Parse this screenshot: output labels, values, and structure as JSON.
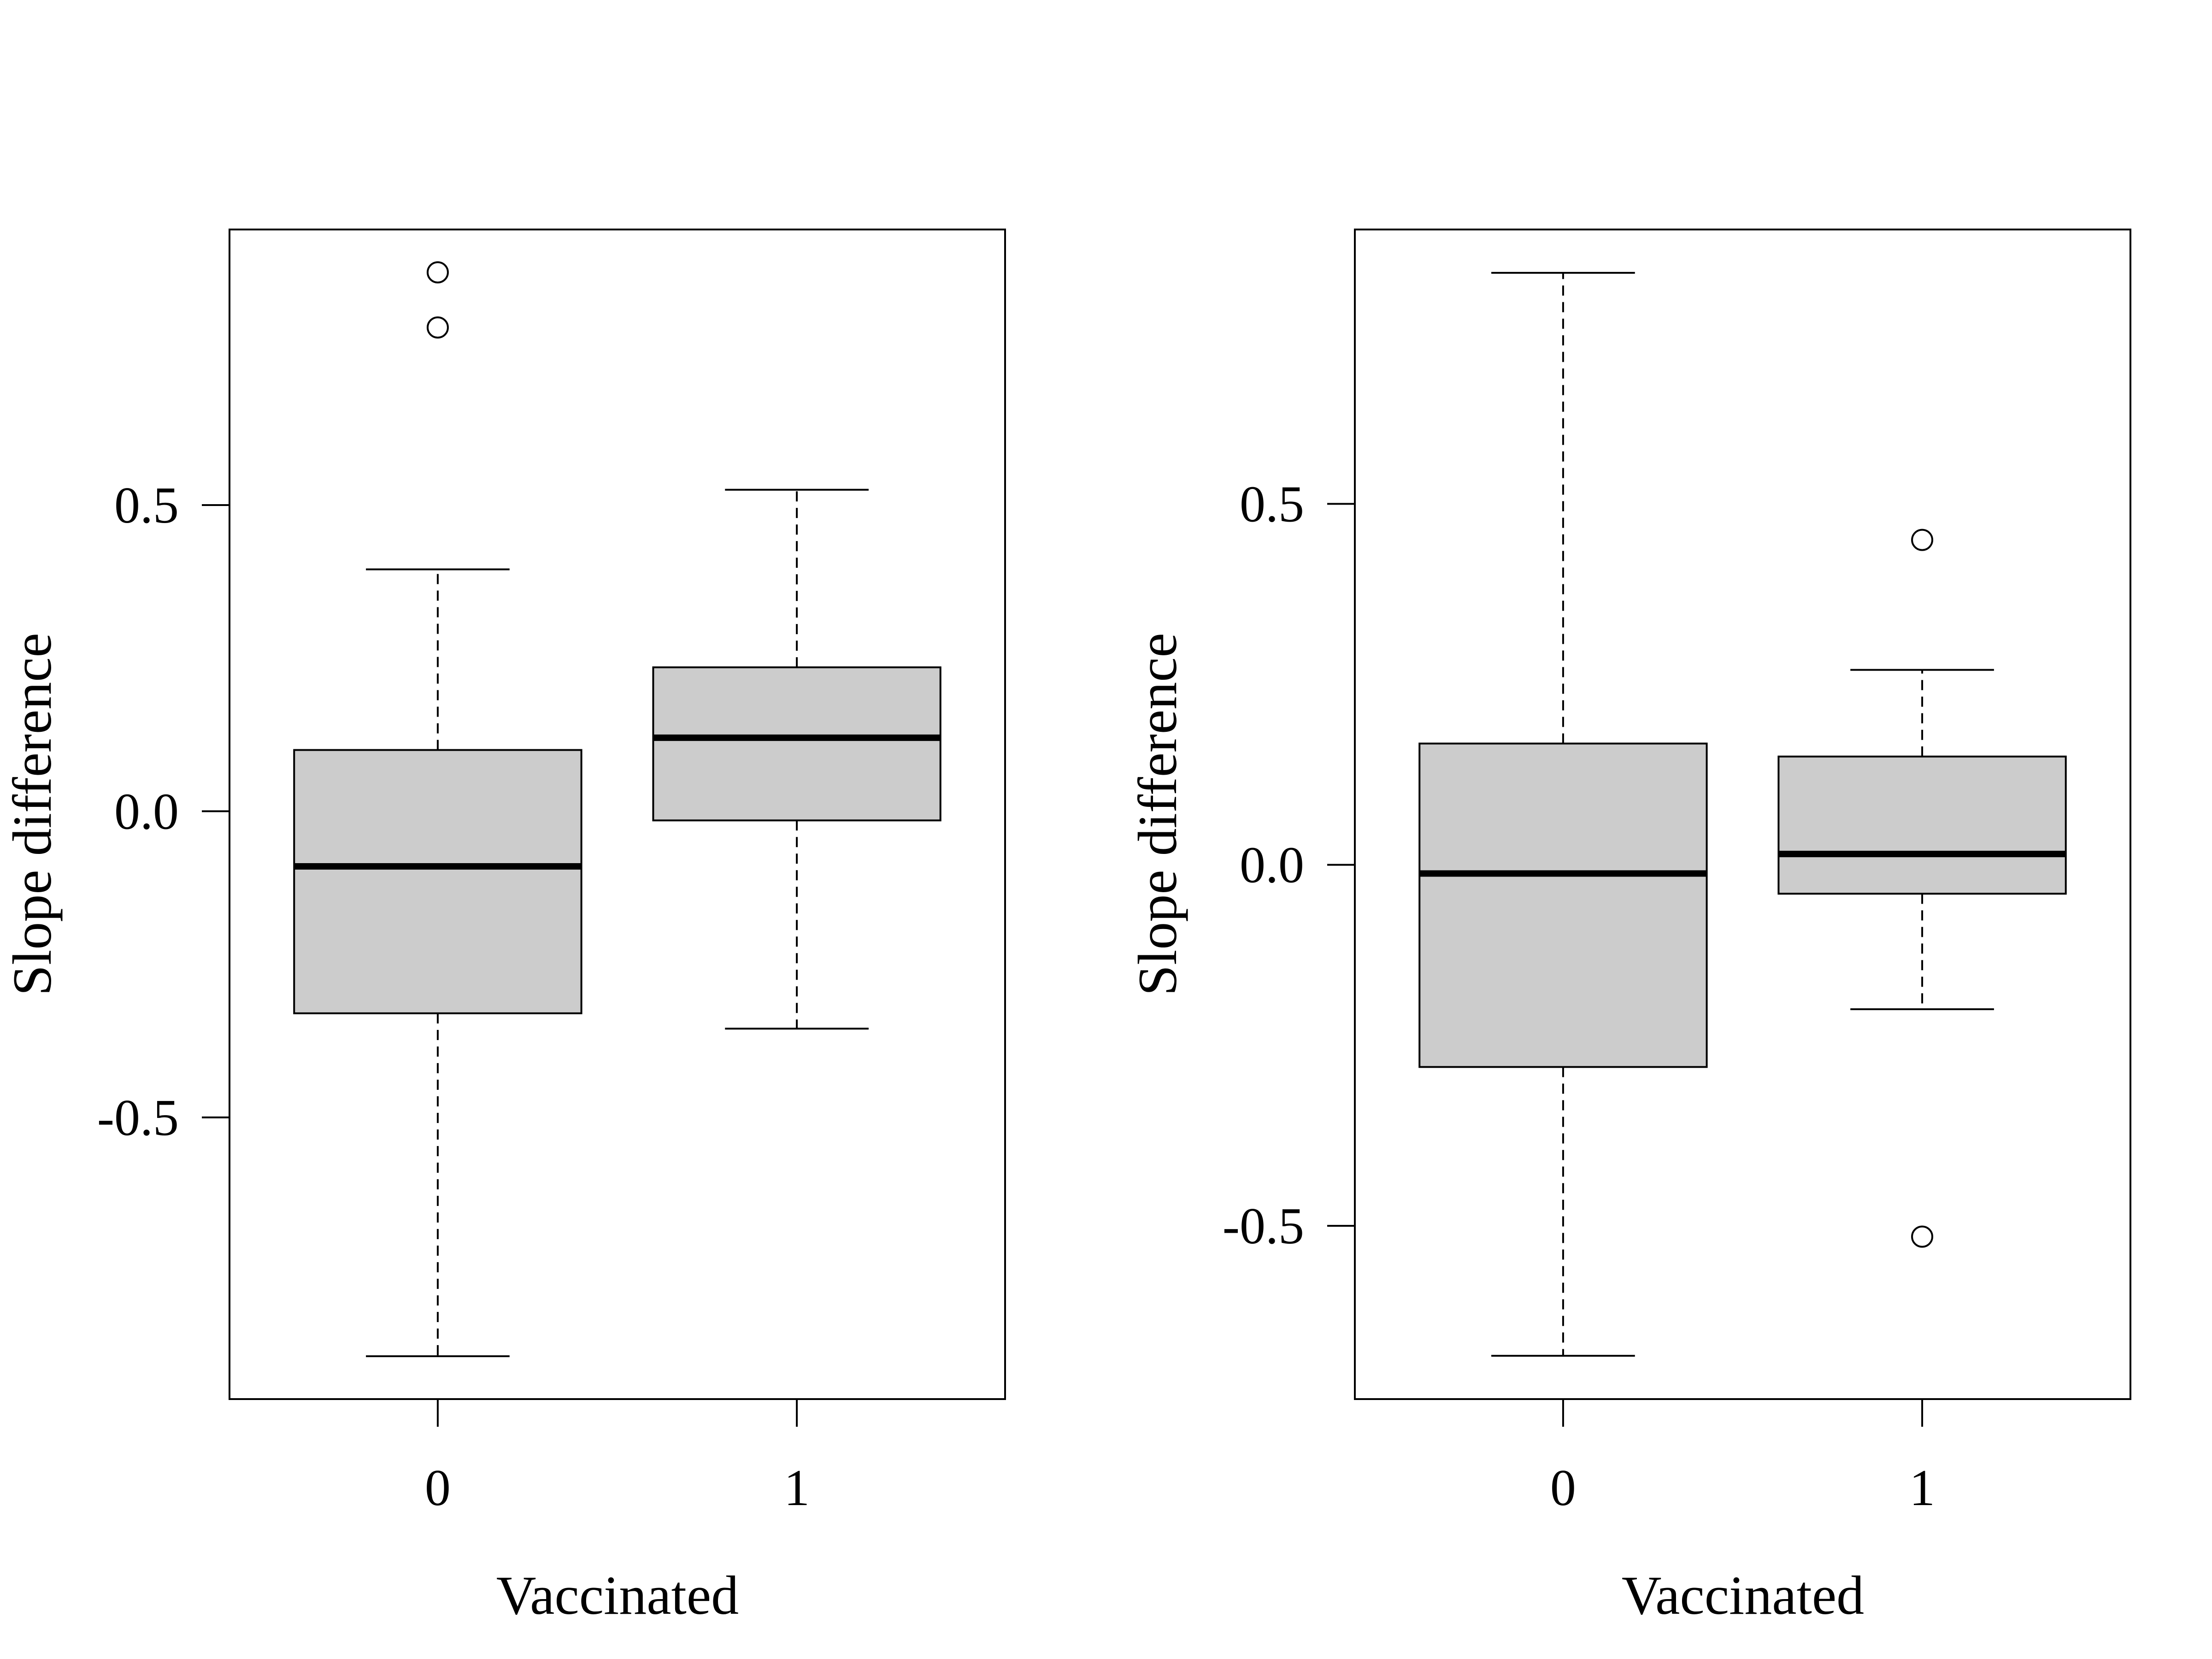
{
  "colors": {
    "box_fill": "#cccccc",
    "stroke": "#000000",
    "background": "#ffffff"
  },
  "chart_data": [
    {
      "type": "box",
      "xlabel": "Vaccinated",
      "ylabel": "Slope difference",
      "categories": [
        "0",
        "1"
      ],
      "y_ticks": [
        "-0.5",
        "0.0",
        "0.5"
      ],
      "ylim": [
        -0.96,
        0.95
      ],
      "grid": false,
      "boxes": [
        {
          "category": "0",
          "whisker_low": -0.89,
          "q1": -0.33,
          "median": -0.09,
          "q3": 0.1,
          "whisker_high": 0.395,
          "outliers": [
            0.79,
            0.88
          ]
        },
        {
          "category": "1",
          "whisker_low": -0.355,
          "q1": -0.015,
          "median": 0.12,
          "q3": 0.235,
          "whisker_high": 0.525,
          "outliers": []
        }
      ]
    },
    {
      "type": "box",
      "xlabel": "Vaccinated",
      "ylabel": "Slope difference",
      "categories": [
        "0",
        "1"
      ],
      "y_ticks": [
        "-0.5",
        "0.0",
        "0.5"
      ],
      "ylim": [
        -0.74,
        0.88
      ],
      "grid": false,
      "boxes": [
        {
          "category": "0",
          "whisker_low": -0.68,
          "q1": -0.28,
          "median": -0.012,
          "q3": 0.168,
          "whisker_high": 0.82,
          "outliers": []
        },
        {
          "category": "1",
          "whisker_low": -0.2,
          "q1": -0.04,
          "median": 0.015,
          "q3": 0.15,
          "whisker_high": 0.27,
          "outliers": [
            0.45,
            -0.515
          ]
        }
      ]
    }
  ]
}
